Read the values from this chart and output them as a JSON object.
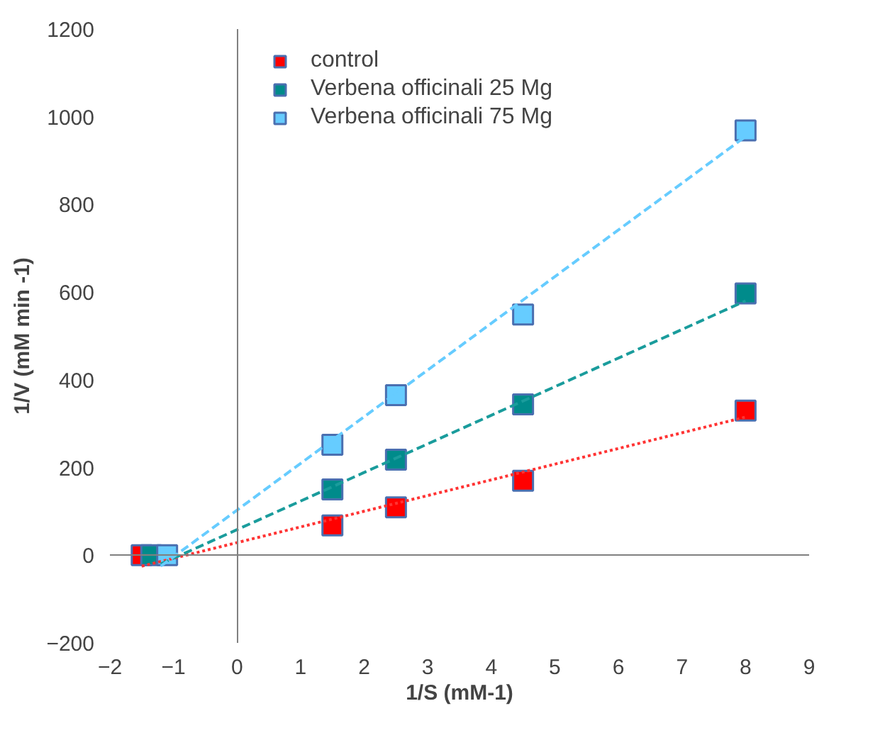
{
  "chart_data": {
    "type": "scatter",
    "xlabel": "1/S (mM-1)",
    "ylabel": "1/V (mM min -1)",
    "xlim": [
      -2,
      9
    ],
    "ylim": [
      -200,
      1200
    ],
    "xticks": [
      -2,
      -1,
      0,
      1,
      2,
      3,
      4,
      5,
      6,
      7,
      8,
      9
    ],
    "yticks": [
      -200,
      0,
      200,
      400,
      600,
      800,
      1000,
      1200
    ],
    "legend": "top left",
    "series": [
      {
        "name": "control",
        "marker": "square",
        "color": "#ff0000",
        "x": [
          -1.5,
          1.5,
          2.5,
          4.5,
          8
        ],
        "values": [
          0,
          68,
          109,
          170,
          330
        ]
      },
      {
        "name": "Verbena officinali 25 Mg",
        "marker": "square",
        "color": "#008b8b",
        "x": [
          -1.35,
          1.5,
          2.5,
          4.5,
          8
        ],
        "values": [
          0,
          150,
          218,
          344,
          597
        ]
      },
      {
        "name": "Verbena officinali 75 Mg",
        "marker": "square",
        "color": "#66ccff",
        "x": [
          -1.1,
          1.5,
          2.5,
          4.5,
          8
        ],
        "values": [
          0,
          252,
          365,
          549,
          969
        ]
      },
      {
        "type": "line",
        "color": "#ff3333",
        "line_style": "dotted",
        "x": [
          -1.5,
          8
        ],
        "values": [
          -25,
          315
        ]
      },
      {
        "type": "line",
        "color": "#1a9c9c",
        "line_style": "dashed",
        "x": [
          -1.2,
          8
        ],
        "values": [
          -20,
          580
        ]
      },
      {
        "type": "line",
        "color": "#66ccff",
        "line_style": "dashed",
        "x": [
          -1.2,
          8
        ],
        "values": [
          -25,
          955
        ]
      }
    ]
  }
}
